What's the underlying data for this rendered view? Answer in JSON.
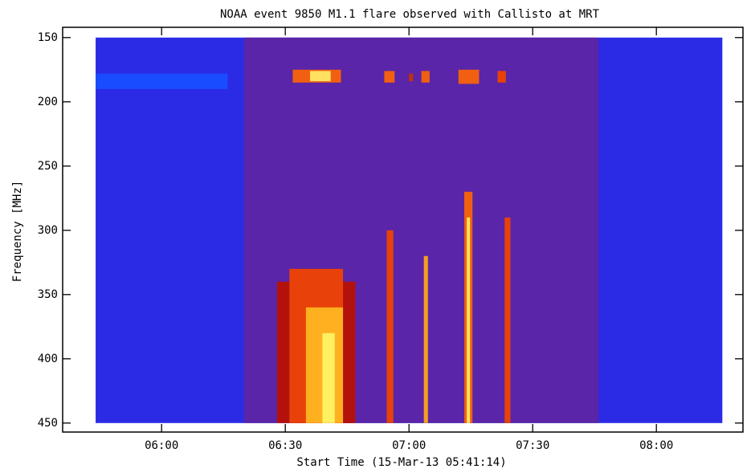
{
  "chart_data": {
    "type": "spectrogram",
    "title": "NOAA event 9850  M1.1 flare observed with Callisto at MRT",
    "xlabel": "Start Time (15-Mar-13 05:41:14)",
    "ylabel": "Frequency [MHz]",
    "xlim": [
      336,
      501
    ],
    "ylim": [
      457,
      142
    ],
    "xticks": [
      {
        "value": 360,
        "label": "06:00"
      },
      {
        "value": 390,
        "label": "06:30"
      },
      {
        "value": 420,
        "label": "07:00"
      },
      {
        "value": 450,
        "label": "07:30"
      },
      {
        "value": 480,
        "label": "08:00"
      }
    ],
    "yticks": [
      150,
      200,
      250,
      300,
      350,
      400,
      450
    ],
    "regions": [
      {
        "x": [
          344,
          496
        ],
        "y": [
          150,
          450
        ],
        "color": "#2b2be6"
      },
      {
        "x": [
          380,
          466
        ],
        "y": [
          150,
          450
        ],
        "color": "#5a25a8"
      },
      {
        "x": [
          344,
          376
        ],
        "y": [
          178,
          190
        ],
        "color": "#1a4cff"
      },
      {
        "x": [
          388,
          407
        ],
        "y": [
          340,
          450
        ],
        "color": "#b3120c"
      },
      {
        "x": [
          391,
          404
        ],
        "y": [
          330,
          450
        ],
        "color": "#e8420a"
      },
      {
        "x": [
          395,
          404
        ],
        "y": [
          360,
          450
        ],
        "color": "#ffb020"
      },
      {
        "x": [
          399,
          402
        ],
        "y": [
          380,
          450
        ],
        "color": "#fff060"
      },
      {
        "x": [
          414.6,
          416.2
        ],
        "y": [
          300,
          450
        ],
        "color": "#e8420a"
      },
      {
        "x": [
          423.6,
          424.6
        ],
        "y": [
          320,
          450
        ],
        "color": "#f4a020"
      },
      {
        "x": [
          433.4,
          435.4
        ],
        "y": [
          270,
          450
        ],
        "color": "#f06010"
      },
      {
        "x": [
          434,
          434.8
        ],
        "y": [
          290,
          450
        ],
        "color": "#ffe060"
      },
      {
        "x": [
          443.2,
          444.6
        ],
        "y": [
          290,
          450
        ],
        "color": "#e8420a"
      },
      {
        "x": [
          391.8,
          403.5
        ],
        "y": [
          175,
          185
        ],
        "color": "#f06010"
      },
      {
        "x": [
          396,
          401
        ],
        "y": [
          176,
          184
        ],
        "color": "#ffe060"
      },
      {
        "x": [
          414,
          416.5
        ],
        "y": [
          176,
          185
        ],
        "color": "#f06010"
      },
      {
        "x": [
          420,
          421
        ],
        "y": [
          178,
          184
        ],
        "color": "#c0300c"
      },
      {
        "x": [
          423,
          425
        ],
        "y": [
          176,
          185
        ],
        "color": "#f06010"
      },
      {
        "x": [
          432,
          437
        ],
        "y": [
          175,
          186
        ],
        "color": "#f06010"
      },
      {
        "x": [
          441.5,
          443.5
        ],
        "y": [
          176,
          185
        ],
        "color": "#e8420a"
      }
    ]
  }
}
